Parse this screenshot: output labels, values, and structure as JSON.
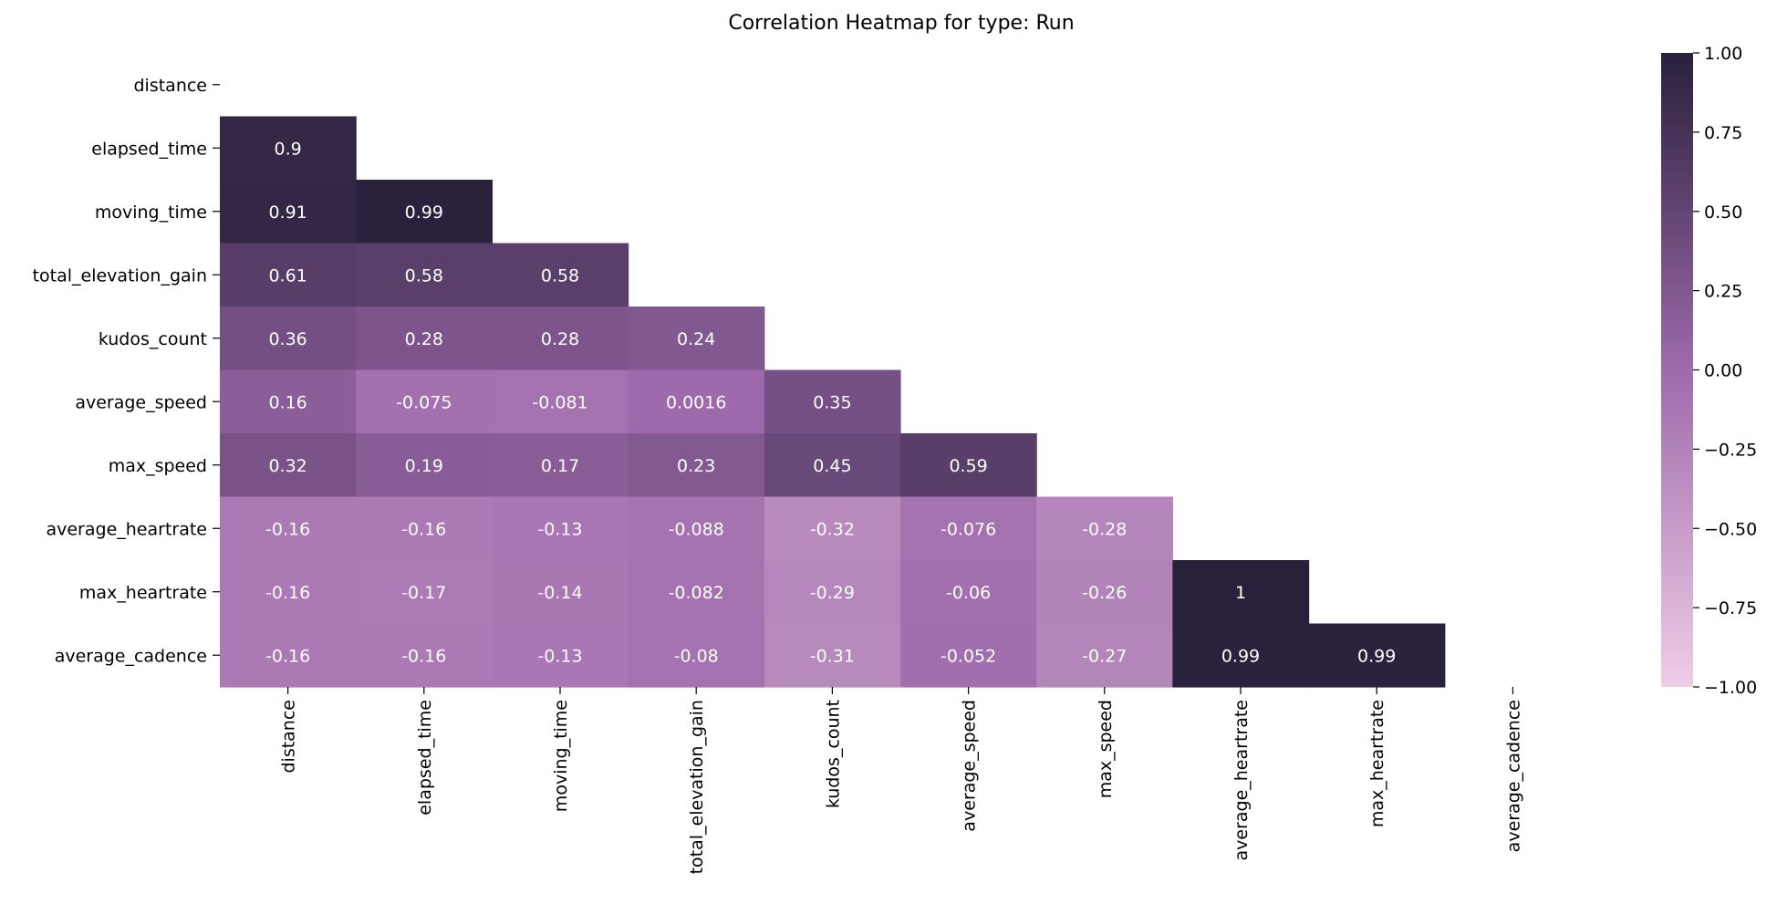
{
  "chart_data": {
    "type": "heatmap",
    "title": "Correlation Heatmap for type: Run",
    "labels": [
      "distance",
      "elapsed_time",
      "moving_time",
      "total_elevation_gain",
      "kudos_count",
      "average_speed",
      "max_speed",
      "average_heartrate",
      "max_heartrate",
      "average_cadence"
    ],
    "matrix": [
      [
        null,
        null,
        null,
        null,
        null,
        null,
        null,
        null,
        null,
        null
      ],
      [
        0.9,
        null,
        null,
        null,
        null,
        null,
        null,
        null,
        null,
        null
      ],
      [
        0.91,
        0.99,
        null,
        null,
        null,
        null,
        null,
        null,
        null,
        null
      ],
      [
        0.61,
        0.58,
        0.58,
        null,
        null,
        null,
        null,
        null,
        null,
        null
      ],
      [
        0.36,
        0.28,
        0.28,
        0.24,
        null,
        null,
        null,
        null,
        null,
        null
      ],
      [
        0.16,
        -0.075,
        -0.081,
        0.0016,
        0.35,
        null,
        null,
        null,
        null,
        null
      ],
      [
        0.32,
        0.19,
        0.17,
        0.23,
        0.45,
        0.59,
        null,
        null,
        null,
        null
      ],
      [
        -0.16,
        -0.16,
        -0.13,
        -0.088,
        -0.32,
        -0.076,
        -0.28,
        null,
        null,
        null
      ],
      [
        -0.16,
        -0.17,
        -0.14,
        -0.082,
        -0.29,
        -0.06,
        -0.26,
        1,
        null,
        null
      ],
      [
        -0.16,
        -0.16,
        -0.13,
        -0.08,
        -0.31,
        -0.052,
        -0.27,
        0.99,
        0.99,
        null
      ]
    ],
    "colorbar": {
      "range": [
        -1.0,
        1.0
      ],
      "ticks": [
        "1.00",
        "0.75",
        "0.50",
        "0.25",
        "0.00",
        "−0.25",
        "−0.50",
        "−0.75",
        "−1.00"
      ],
      "tick_values": [
        1.0,
        0.75,
        0.5,
        0.25,
        0.0,
        -0.25,
        -0.5,
        -0.75,
        -1.0
      ],
      "color_low": "#efcde6",
      "color_mid": "#9e6aab",
      "color_high": "#29203b"
    }
  }
}
